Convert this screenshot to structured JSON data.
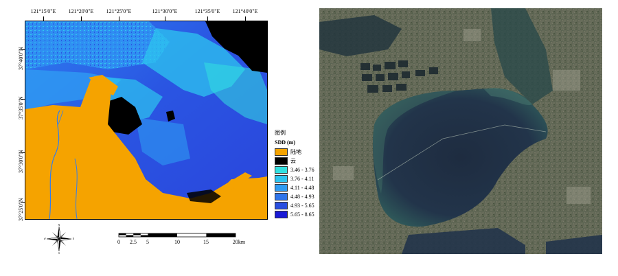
{
  "map": {
    "top_ticks": [
      "121°15'0\"E",
      "121°20'0\"E",
      "121°25'0\"E",
      "121°30'0\"E",
      "121°35'0\"E",
      "121°40'0\"E"
    ],
    "left_ticks": [
      "37°40'0\"N",
      "37°35'0\"N",
      "37°30'0\"N",
      "37°25'0\"N"
    ]
  },
  "legend": {
    "title": "图例",
    "subtitle": "SDD (m)",
    "items": [
      {
        "label": "陆地",
        "color": "#f5a300"
      },
      {
        "label": "云",
        "color": "#000000"
      },
      {
        "label": "3.46 - 3.76",
        "color": "#33e0e0"
      },
      {
        "label": "3.76 - 4.11",
        "color": "#2ec4ef"
      },
      {
        "label": "4.11 - 4.48",
        "color": "#2f9bf2"
      },
      {
        "label": "4.48 - 4.93",
        "color": "#2f74ea"
      },
      {
        "label": "4.93 - 5.65",
        "color": "#2a4fe0"
      },
      {
        "label": "5.65 - 8.65",
        "color": "#1a1ad6"
      }
    ]
  },
  "compass": {
    "labels": [
      "N",
      "S",
      "W",
      "E"
    ]
  },
  "scalebar": {
    "labels": [
      "0",
      "2.5",
      "5",
      "10",
      "15",
      "20km"
    ]
  }
}
